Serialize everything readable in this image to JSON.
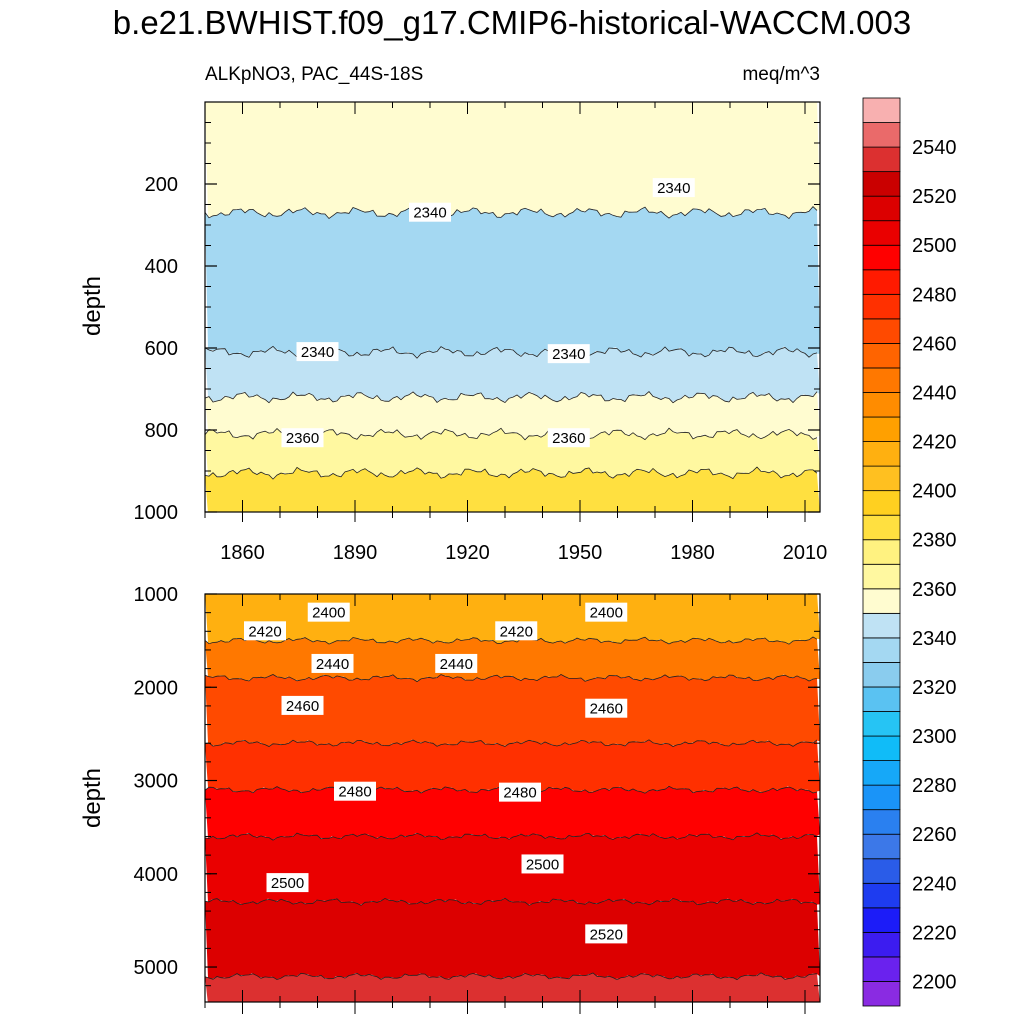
{
  "title": "b.e21.BWHIST.f09_g17.CMIP6-historical-WACCM.003",
  "chart_data": [
    {
      "type": "contour",
      "panel": "upper",
      "left_label": "ALKpNO3, PAC_44S-18S",
      "right_label": "meq/m^3",
      "xlabel": "",
      "ylabel": "depth",
      "xlim": [
        1850,
        2014
      ],
      "ylim": [
        1000,
        0
      ],
      "xticks": [
        1860,
        1890,
        1920,
        1950,
        1980,
        2010
      ],
      "yticks": [
        200,
        400,
        600,
        800,
        1000
      ],
      "levels": [
        {
          "z_top": 0,
          "z_bottom": 270,
          "value": 2350
        },
        {
          "z_top": 270,
          "z_bottom": 610,
          "value": 2330
        },
        {
          "z_top": 610,
          "z_bottom": 720,
          "value": 2345
        },
        {
          "z_top": 720,
          "z_bottom": 810,
          "value": 2355
        },
        {
          "z_top": 810,
          "z_bottom": 905,
          "value": 2365
        },
        {
          "z_top": 905,
          "z_bottom": 1000,
          "value": 2385
        }
      ],
      "contour_labels": [
        {
          "text": "2340",
          "x": 1910,
          "depth": 270
        },
        {
          "text": "2340",
          "x": 1975,
          "depth": 210
        },
        {
          "text": "2340",
          "x": 1880,
          "depth": 610
        },
        {
          "text": "2340",
          "x": 1947,
          "depth": 615
        },
        {
          "text": "2360",
          "x": 1876,
          "depth": 820
        },
        {
          "text": "2360",
          "x": 1947,
          "depth": 820
        }
      ]
    },
    {
      "type": "contour",
      "panel": "lower",
      "xlabel": "",
      "ylabel": "depth",
      "xlim": [
        1850,
        2014
      ],
      "ylim": [
        5375,
        1000
      ],
      "yticks": [
        1000,
        2000,
        3000,
        4000,
        5000
      ],
      "levels": [
        {
          "z_top": 1000,
          "z_bottom": 1500,
          "value": 2410
        },
        {
          "z_top": 1500,
          "z_bottom": 1900,
          "value": 2440
        },
        {
          "z_top": 1900,
          "z_bottom": 2600,
          "value": 2460
        },
        {
          "z_top": 2600,
          "z_bottom": 3100,
          "value": 2475
        },
        {
          "z_top": 3100,
          "z_bottom": 3600,
          "value": 2490
        },
        {
          "z_top": 3600,
          "z_bottom": 4300,
          "value": 2500
        },
        {
          "z_top": 4300,
          "z_bottom": 5100,
          "value": 2515
        },
        {
          "z_top": 5100,
          "z_bottom": 5375,
          "value": 2535
        }
      ],
      "contour_labels": [
        {
          "text": "2400",
          "x": 1883,
          "depth": 1200
        },
        {
          "text": "2400",
          "x": 1957,
          "depth": 1200
        },
        {
          "text": "2420",
          "x": 1866,
          "depth": 1400
        },
        {
          "text": "2420",
          "x": 1933,
          "depth": 1400
        },
        {
          "text": "2440",
          "x": 1884,
          "depth": 1750
        },
        {
          "text": "2440",
          "x": 1917,
          "depth": 1750
        },
        {
          "text": "2460",
          "x": 1876,
          "depth": 2200
        },
        {
          "text": "2460",
          "x": 1957,
          "depth": 2230
        },
        {
          "text": "2480",
          "x": 1890,
          "depth": 3120
        },
        {
          "text": "2480",
          "x": 1934,
          "depth": 3130
        },
        {
          "text": "2500",
          "x": 1872,
          "depth": 4100
        },
        {
          "text": "2500",
          "x": 1940,
          "depth": 3900
        },
        {
          "text": "2520",
          "x": 1957,
          "depth": 4650
        }
      ]
    }
  ],
  "colorbar": {
    "ticks": [
      2200,
      2220,
      2240,
      2260,
      2280,
      2300,
      2320,
      2340,
      2360,
      2380,
      2400,
      2420,
      2440,
      2460,
      2480,
      2500,
      2520,
      2540
    ],
    "vmin": 2190,
    "vmax": 2560,
    "colors": [
      "#8a2be2",
      "#6a22ee",
      "#3c1cf0",
      "#1c1cf8",
      "#1e3cf0",
      "#2a5ce8",
      "#3c78e8",
      "#2a80f0",
      "#1a94f8",
      "#16a8f8",
      "#10bcf8",
      "#26c4f4",
      "#5ac2f2",
      "#8accee",
      "#a4d8f2",
      "#bfe2f4",
      "#fffcd0",
      "#fff8a0",
      "#fff280",
      "#ffe040",
      "#ffd020",
      "#ffc020",
      "#ffb010",
      "#ffa000",
      "#ff8c00",
      "#ff7800",
      "#ff6400",
      "#ff4a00",
      "#ff3000",
      "#ff1a00",
      "#ff0000",
      "#ea0000",
      "#dc0000",
      "#ca0000",
      "#dc3030",
      "#ea6a6a",
      "#f8b0b0"
    ]
  }
}
